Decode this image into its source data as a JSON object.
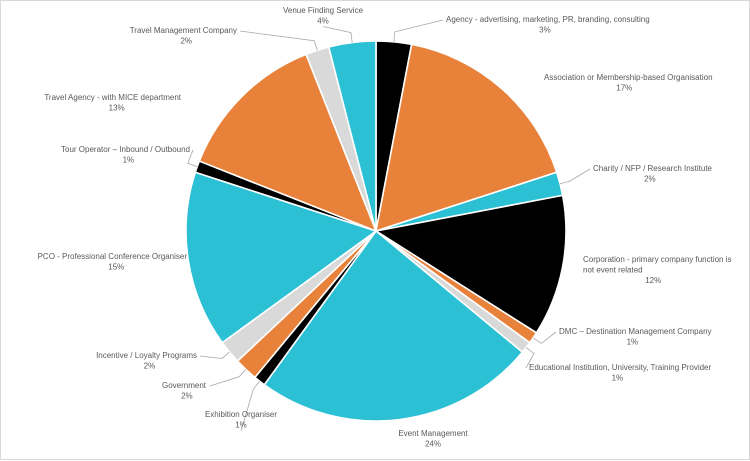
{
  "chart_data": {
    "type": "pie",
    "title": "",
    "start_angle_deg": 0,
    "direction": "clockwise",
    "slices": [
      {
        "name": "Agency - advertising, marketing, PR, branding, consulting",
        "label_lines": [
          "Agency - advertising, marketing, PR, branding, consulting"
        ],
        "value": 3,
        "pct_label": "3%",
        "color": "#000000"
      },
      {
        "name": "Association or Membership-based Organisation",
        "label_lines": [
          "Association or Membership-based Organisation"
        ],
        "value": 17,
        "pct_label": "17%",
        "color": "#E8823A"
      },
      {
        "name": "Charity / NFP / Research Institute",
        "label_lines": [
          "Charity / NFP / Research Institute"
        ],
        "value": 2,
        "pct_label": "2%",
        "color": "#2BC0D4"
      },
      {
        "name": "Corporation - primary company function is not event related",
        "label_lines": [
          "Corporation - primary company function is",
          "not event related"
        ],
        "value": 12,
        "pct_label": "12%",
        "color": "#000000"
      },
      {
        "name": "DMC – Destination Management Company",
        "label_lines": [
          "DMC – Destination Management Company"
        ],
        "value": 1,
        "pct_label": "1%",
        "color": "#E8823A"
      },
      {
        "name": "Educational Institution, University, Training Provider",
        "label_lines": [
          "Educational Institution, University, Training Provider"
        ],
        "value": 1,
        "pct_label": "1%",
        "color": "#D9D9D9"
      },
      {
        "name": "Event Management",
        "label_lines": [
          "Event Management"
        ],
        "value": 24,
        "pct_label": "24%",
        "color": "#2BC0D4"
      },
      {
        "name": "Exhibition Organiser",
        "label_lines": [
          "Exhibition Organiser"
        ],
        "value": 1,
        "pct_label": "1%",
        "color": "#000000"
      },
      {
        "name": "Government",
        "label_lines": [
          "Government"
        ],
        "value": 2,
        "pct_label": "2%",
        "color": "#E8823A"
      },
      {
        "name": "Incentive / Loyalty Programs",
        "label_lines": [
          "Incentive / Loyalty Programs"
        ],
        "value": 2,
        "pct_label": "2%",
        "color": "#D9D9D9"
      },
      {
        "name": "PCO - Professional Conference Organiser",
        "label_lines": [
          "PCO - Professional Conference Organiser"
        ],
        "value": 15,
        "pct_label": "15%",
        "color": "#2BC0D4"
      },
      {
        "name": "Tour Operator – Inbound / Outbound",
        "label_lines": [
          "Tour Operator – Inbound / Outbound"
        ],
        "value": 1,
        "pct_label": "1%",
        "color": "#000000"
      },
      {
        "name": "Travel Agency - with MICE department",
        "label_lines": [
          "Travel Agency - with MICE department"
        ],
        "value": 13,
        "pct_label": "13%",
        "color": "#E8823A"
      },
      {
        "name": "Travel Management Company",
        "label_lines": [
          "Travel Management Company"
        ],
        "value": 2,
        "pct_label": "2%",
        "color": "#D9D9D9"
      },
      {
        "name": "Venue Finding Service",
        "label_lines": [
          "Venue Finding Service"
        ],
        "value": 4,
        "pct_label": "4%",
        "color": "#2BC0D4"
      }
    ],
    "labels_outside": true,
    "leader_lines": true,
    "legend": "none"
  }
}
